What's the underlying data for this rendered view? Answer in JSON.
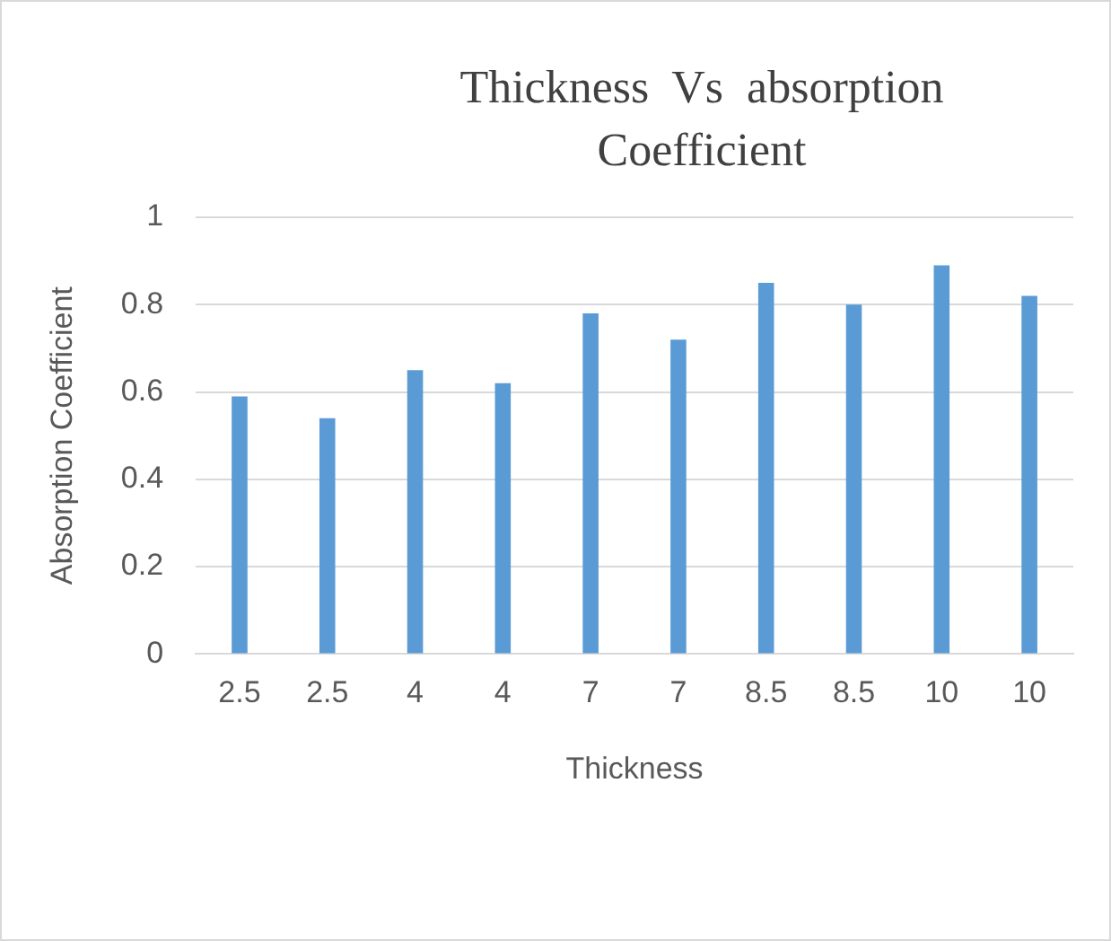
{
  "chart_data": {
    "type": "bar",
    "title": "Thickness  Vs  absorption Coefficient",
    "xlabel": "Thickness",
    "ylabel": "Absorption Coefficient",
    "categories": [
      "2.5",
      "2.5",
      "4",
      "4",
      "7",
      "7",
      "8.5",
      "8.5",
      "10",
      "10"
    ],
    "values": [
      0.59,
      0.54,
      0.65,
      0.62,
      0.78,
      0.72,
      0.85,
      0.8,
      0.89,
      0.82
    ],
    "color": "#5b9bd5",
    "ylim": [
      0,
      1
    ],
    "yticks": [
      0,
      0.2,
      0.4,
      0.6,
      0.8,
      1
    ],
    "grid": "y",
    "legend": false
  }
}
